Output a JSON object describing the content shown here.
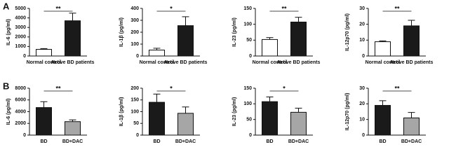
{
  "chart_data": [
    {
      "type": "bar",
      "panel": "A",
      "ylabel": "IL-6 (pg/ml)",
      "categories": [
        "Normal control",
        "Active BD patients"
      ],
      "values": [
        700,
        3700
      ],
      "errors": [
        80,
        800
      ],
      "colors": [
        "#ffffff",
        "#1a1a1a"
      ],
      "ylim": [
        0,
        5000
      ],
      "yticks": [
        0,
        1000,
        2000,
        3000,
        4000,
        5000
      ],
      "annotation": "**"
    },
    {
      "type": "bar",
      "ylabel": "IL-1β (pg/ml)",
      "categories": [
        "Normal control",
        "Active BD patients"
      ],
      "values": [
        50,
        255
      ],
      "errors": [
        15,
        75
      ],
      "colors": [
        "#ffffff",
        "#1a1a1a"
      ],
      "ylim": [
        0,
        400
      ],
      "yticks": [
        0,
        100,
        200,
        300,
        400
      ],
      "annotation": "*"
    },
    {
      "type": "bar",
      "ylabel": "IL-23 (pg/ml)",
      "categories": [
        "Normal control",
        "Active BD patients"
      ],
      "values": [
        52,
        107
      ],
      "errors": [
        6,
        15
      ],
      "colors": [
        "#ffffff",
        "#1a1a1a"
      ],
      "ylim": [
        0,
        150
      ],
      "yticks": [
        0,
        50,
        100,
        150
      ],
      "annotation": "**"
    },
    {
      "type": "bar",
      "ylabel": "IL-12p70 (pg/ml)",
      "categories": [
        "Normal control",
        "Active BD patients"
      ],
      "values": [
        9,
        19
      ],
      "errors": [
        0.5,
        3.5
      ],
      "colors": [
        "#ffffff",
        "#1a1a1a"
      ],
      "ylim": [
        0,
        30
      ],
      "yticks": [
        0,
        10,
        20,
        30
      ],
      "annotation": "**"
    },
    {
      "type": "bar",
      "panel": "B",
      "ylabel": "IL-6 (pg/ml)",
      "categories": [
        "BD",
        "BD+DAC"
      ],
      "values": [
        4700,
        2300
      ],
      "errors": [
        1000,
        300
      ],
      "colors": [
        "#1a1a1a",
        "#a6a6a6"
      ],
      "ylim": [
        0,
        8000
      ],
      "yticks": [
        0,
        2000,
        4000,
        6000,
        8000
      ],
      "annotation": "**"
    },
    {
      "type": "bar",
      "ylabel": "IL-1β (pg/ml)",
      "categories": [
        "BD",
        "BD+DAC"
      ],
      "values": [
        140,
        93
      ],
      "errors": [
        35,
        27
      ],
      "colors": [
        "#1a1a1a",
        "#a6a6a6"
      ],
      "ylim": [
        0,
        200
      ],
      "yticks": [
        0,
        50,
        100,
        150,
        200
      ],
      "annotation": "*"
    },
    {
      "type": "bar",
      "ylabel": "IL-23 (pg/ml)",
      "categories": [
        "BD",
        "BD+DAC"
      ],
      "values": [
        107,
        73
      ],
      "errors": [
        15,
        13
      ],
      "colors": [
        "#1a1a1a",
        "#a6a6a6"
      ],
      "ylim": [
        0,
        150
      ],
      "yticks": [
        0,
        50,
        100,
        150
      ],
      "annotation": "*"
    },
    {
      "type": "bar",
      "ylabel": "IL-12p70 (pg/ml)",
      "categories": [
        "BD",
        "BD+DAC"
      ],
      "values": [
        19,
        11
      ],
      "errors": [
        3,
        3.5
      ],
      "colors": [
        "#1a1a1a",
        "#a6a6a6"
      ],
      "ylim": [
        0,
        30
      ],
      "yticks": [
        0,
        10,
        20,
        30
      ],
      "annotation": "**"
    }
  ]
}
